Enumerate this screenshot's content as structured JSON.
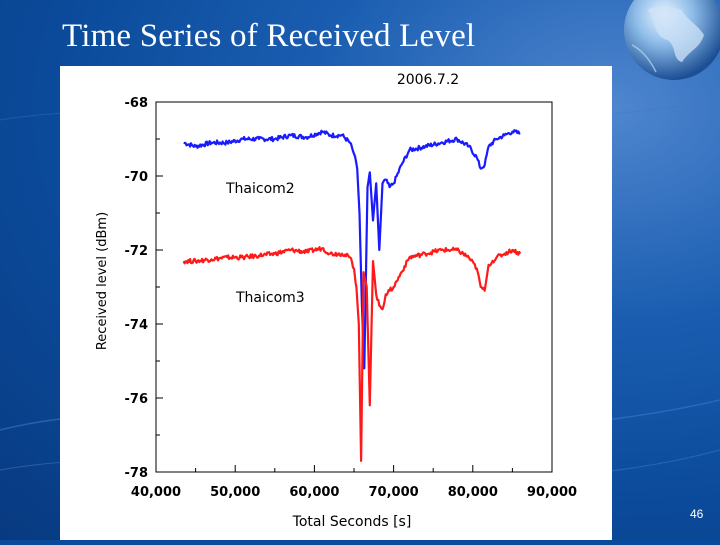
{
  "slide": {
    "title": "Time Series of Received Level",
    "page_number": "46"
  },
  "chart_data": {
    "type": "line",
    "title": "2006.7.2",
    "xlabel": "Total Seconds [s]",
    "ylabel": "Received level (dBm)",
    "xlim": [
      40000,
      90000
    ],
    "ylim": [
      -78,
      -68
    ],
    "x_ticks": [
      "40,000",
      "50,000",
      "60,000",
      "70,000",
      "80,000",
      "90,000"
    ],
    "y_ticks": [
      "-68",
      "-70",
      "-72",
      "-74",
      "-76",
      "-78"
    ],
    "grid": false,
    "series": [
      {
        "name": "Thaicom2",
        "color": "#1a1aff",
        "x": [
          43500,
          45000,
          47000,
          49000,
          51000,
          53000,
          55000,
          57000,
          59000,
          61000,
          62000,
          63500,
          64500,
          65000,
          65400,
          65700,
          66000,
          66300,
          66700,
          67000,
          67400,
          67800,
          68200,
          68600,
          69000,
          69500,
          70000,
          71000,
          72000,
          74000,
          76000,
          78000,
          79500,
          80500,
          81000,
          81500,
          82000,
          83000,
          84000,
          85000,
          86000
        ],
        "y": [
          -69.1,
          -69.2,
          -69.1,
          -69.1,
          -69.0,
          -69.0,
          -69.0,
          -68.9,
          -68.95,
          -68.8,
          -68.9,
          -68.9,
          -69.1,
          -69.4,
          -69.8,
          -71.0,
          -73.5,
          -75.2,
          -70.3,
          -69.9,
          -71.2,
          -70.2,
          -72.0,
          -70.2,
          -70.1,
          -70.3,
          -70.2,
          -69.7,
          -69.3,
          -69.2,
          -69.1,
          -69.0,
          -69.2,
          -69.5,
          -69.8,
          -69.7,
          -69.2,
          -69.0,
          -68.9,
          -68.8,
          -68.85
        ]
      },
      {
        "name": "Thaicom3",
        "color": "#ff1a1a",
        "x": [
          43500,
          45000,
          47000,
          49000,
          51000,
          53000,
          55000,
          57000,
          59000,
          61000,
          62000,
          63500,
          64500,
          65000,
          65300,
          65600,
          65900,
          66200,
          66600,
          67000,
          67400,
          67800,
          68200,
          68600,
          69000,
          69500,
          70000,
          71000,
          72000,
          74000,
          76000,
          78000,
          79500,
          80500,
          81000,
          81500,
          82000,
          83000,
          84000,
          85000,
          86000
        ],
        "y": [
          -72.3,
          -72.3,
          -72.25,
          -72.2,
          -72.2,
          -72.15,
          -72.1,
          -72.0,
          -72.05,
          -71.95,
          -72.1,
          -72.1,
          -72.2,
          -72.5,
          -73.0,
          -74.0,
          -77.7,
          -72.6,
          -73.0,
          -76.2,
          -72.3,
          -73.2,
          -73.5,
          -73.6,
          -73.2,
          -73.1,
          -73.0,
          -72.6,
          -72.2,
          -72.1,
          -72.0,
          -72.0,
          -72.2,
          -72.5,
          -73.0,
          -73.1,
          -72.4,
          -72.2,
          -72.1,
          -72.0,
          -72.1
        ]
      }
    ],
    "annotations": [
      "Thaicom2",
      "Thaicom3"
    ]
  },
  "colors": {
    "background": "#0b4a9a",
    "axis": "#000000"
  }
}
